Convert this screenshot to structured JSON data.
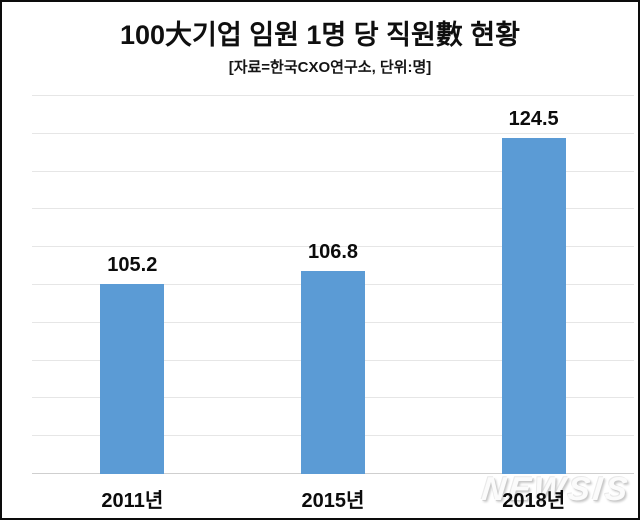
{
  "page": {
    "background": "#ffffff",
    "frame_border_color": "#0c0c0c"
  },
  "chart_data": {
    "type": "bar",
    "title": "100大기업 임원 1명 당 직원數 현황",
    "subtitle": "[자료=한국CXO연구소, 단위:명]",
    "categories": [
      "2011년",
      "2015년",
      "2018년"
    ],
    "values": [
      105.2,
      106.8,
      124.5
    ],
    "value_labels": [
      "105.2",
      "106.8",
      "124.5"
    ],
    "bar_color": "#5B9BD5",
    "ylim": [
      80,
      130
    ],
    "gridline_step": 5,
    "grid": true,
    "y_axis_labels_visible": false,
    "legend_position": "none",
    "gridline_color": "#e6e6e6",
    "axis_line_color": "#cfcfcf",
    "label_color": "#0c0c0c"
  },
  "watermark": {
    "text": "NEWSIS",
    "color": "#fbfbfb",
    "shadow_color": "#c9c9c9"
  }
}
